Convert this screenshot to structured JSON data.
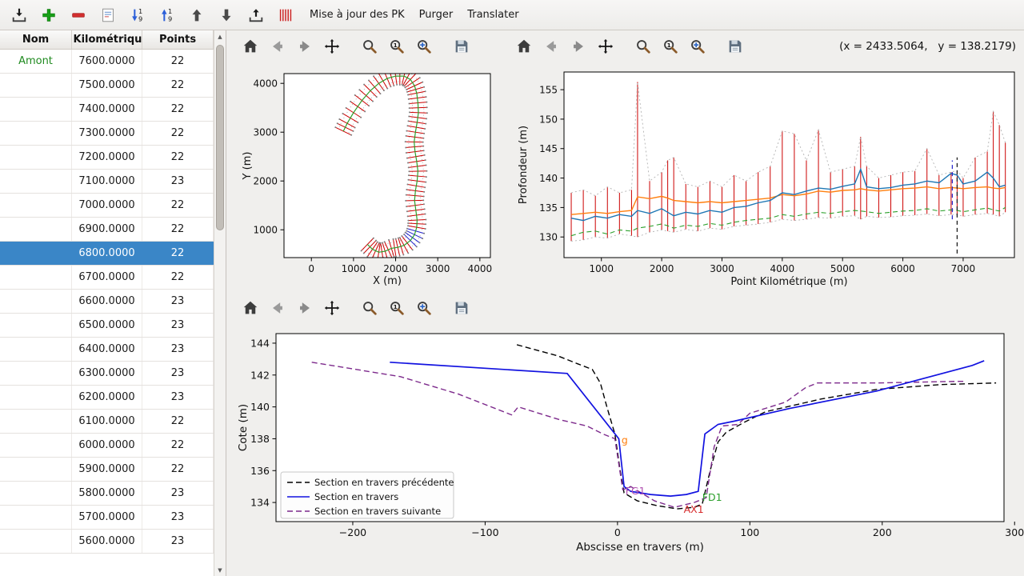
{
  "toolbar": {
    "buttons": [
      {
        "name": "import"
      },
      {
        "name": "add"
      },
      {
        "name": "remove"
      },
      {
        "name": "notes"
      },
      {
        "name": "sort-desc"
      },
      {
        "name": "sort-asc"
      },
      {
        "name": "move-up"
      },
      {
        "name": "move-down"
      },
      {
        "name": "export"
      },
      {
        "name": "pk-marks"
      }
    ],
    "menus": [
      "Mise à jour des PK",
      "Purger",
      "Translater"
    ]
  },
  "table": {
    "columns": [
      "Nom",
      "t Kilométrique",
      "Points"
    ],
    "selected_index": 8,
    "rows": [
      {
        "nom": "Amont",
        "pk": "7600.0000",
        "points": "22"
      },
      {
        "nom": "",
        "pk": "7500.0000",
        "points": "22"
      },
      {
        "nom": "",
        "pk": "7400.0000",
        "points": "22"
      },
      {
        "nom": "",
        "pk": "7300.0000",
        "points": "22"
      },
      {
        "nom": "",
        "pk": "7200.0000",
        "points": "22"
      },
      {
        "nom": "",
        "pk": "7100.0000",
        "points": "23"
      },
      {
        "nom": "",
        "pk": "7000.0000",
        "points": "22"
      },
      {
        "nom": "",
        "pk": "6900.0000",
        "points": "22"
      },
      {
        "nom": "",
        "pk": "6800.0000",
        "points": "22"
      },
      {
        "nom": "",
        "pk": "6700.0000",
        "points": "22"
      },
      {
        "nom": "",
        "pk": "6600.0000",
        "points": "23"
      },
      {
        "nom": "",
        "pk": "6500.0000",
        "points": "23"
      },
      {
        "nom": "",
        "pk": "6400.0000",
        "points": "23"
      },
      {
        "nom": "",
        "pk": "6300.0000",
        "points": "23"
      },
      {
        "nom": "",
        "pk": "6200.0000",
        "points": "23"
      },
      {
        "nom": "",
        "pk": "6100.0000",
        "points": "22"
      },
      {
        "nom": "",
        "pk": "6000.0000",
        "points": "22"
      },
      {
        "nom": "",
        "pk": "5900.0000",
        "points": "22"
      },
      {
        "nom": "",
        "pk": "5800.0000",
        "points": "23"
      },
      {
        "nom": "",
        "pk": "5700.0000",
        "points": "23"
      },
      {
        "nom": "",
        "pk": "5600.0000",
        "points": "23"
      }
    ]
  },
  "nav_toolbar": {
    "icons": [
      "home",
      "back",
      "forward",
      "pan",
      "zoom",
      "zoom-one",
      "zoom-plus",
      "save"
    ]
  },
  "readout": "(x = 2433.5064,   y = 138.2179)",
  "chart_data": [
    {
      "id": "plan",
      "type": "line",
      "xlabel": "X (m)",
      "ylabel": "Y (m)",
      "xlim": [
        -650,
        4250
      ],
      "ylim": [
        430,
        4200
      ],
      "xticks": [
        0,
        1000,
        2000,
        3000,
        4000
      ],
      "yticks": [
        1000,
        2000,
        3000,
        4000
      ],
      "centerline": [
        [
          1330,
          700
        ],
        [
          1450,
          600
        ],
        [
          1600,
          540
        ],
        [
          1750,
          560
        ],
        [
          1900,
          620
        ],
        [
          2050,
          640
        ],
        [
          2200,
          680
        ],
        [
          2350,
          780
        ],
        [
          2450,
          900
        ],
        [
          2500,
          1050
        ],
        [
          2510,
          1200
        ],
        [
          2480,
          1400
        ],
        [
          2450,
          1600
        ],
        [
          2470,
          1800
        ],
        [
          2510,
          2000
        ],
        [
          2530,
          2200
        ],
        [
          2500,
          2400
        ],
        [
          2460,
          2600
        ],
        [
          2440,
          2800
        ],
        [
          2470,
          3000
        ],
        [
          2510,
          3200
        ],
        [
          2540,
          3400
        ],
        [
          2530,
          3600
        ],
        [
          2500,
          3800
        ],
        [
          2450,
          3950
        ],
        [
          2350,
          4080
        ],
        [
          2200,
          4150
        ],
        [
          2000,
          4150
        ],
        [
          1800,
          4100
        ],
        [
          1600,
          4000
        ],
        [
          1400,
          3850
        ],
        [
          1200,
          3650
        ],
        [
          1000,
          3400
        ],
        [
          850,
          3180
        ],
        [
          760,
          3020
        ]
      ],
      "highlight_range": [
        14,
        17
      ],
      "colors": {
        "sections": "#cc0000",
        "axis": "#2ca02c",
        "banks": "#999999",
        "highlight": "#2222cc"
      }
    },
    {
      "id": "profile",
      "type": "line",
      "xlabel": "Point Kilométrique (m)",
      "ylabel": "Profondeur (m)",
      "xlim": [
        380,
        7850
      ],
      "ylim": [
        126.5,
        158
      ],
      "xticks": [
        1000,
        2000,
        3000,
        4000,
        5000,
        6000,
        7000
      ],
      "yticks": [
        130,
        135,
        140,
        145,
        150,
        155
      ],
      "pk": [
        500,
        700,
        900,
        1100,
        1300,
        1500,
        1600,
        1800,
        2000,
        2100,
        2200,
        2400,
        2600,
        2800,
        3000,
        3200,
        3400,
        3600,
        3800,
        4000,
        4200,
        4400,
        4600,
        4800,
        5000,
        5200,
        5300,
        5400,
        5600,
        5800,
        6000,
        6200,
        6400,
        6600,
        6800,
        6900,
        7000,
        7200,
        7400,
        7500,
        7600,
        7700
      ],
      "bars": {
        "max": [
          137.5,
          138.0,
          137.0,
          138.5,
          137.5,
          138.0,
          156.3,
          139.5,
          141.0,
          143.0,
          143.5,
          139.0,
          138.5,
          139.5,
          138.5,
          140.5,
          139.5,
          141.0,
          142.0,
          148.0,
          147.5,
          143.0,
          148.2,
          141.0,
          141.5,
          142.0,
          147.0,
          142.0,
          140.0,
          140.5,
          141.0,
          141.2,
          145.0,
          140.5,
          141.0,
          141.3,
          140.0,
          143.5,
          144.5,
          151.3,
          149.0,
          146.0
        ],
        "min": [
          129.3,
          129.5,
          130.0,
          129.8,
          130.5,
          130.2,
          130.0,
          130.8,
          131.2,
          131.0,
          130.8,
          131.3,
          131.0,
          131.5,
          131.3,
          131.8,
          132.0,
          132.2,
          132.5,
          133.0,
          132.8,
          133.0,
          133.3,
          133.2,
          133.5,
          133.6,
          133.0,
          133.5,
          133.3,
          133.4,
          133.6,
          133.7,
          133.9,
          133.6,
          133.8,
          133.8,
          133.5,
          133.8,
          134.0,
          133.8,
          133.5,
          134.2
        ],
        "color": "#cc0000"
      },
      "series": [
        {
          "name": "fond",
          "color": "#2ca02c",
          "dash": "6 4",
          "values": [
            130.2,
            130.8,
            131.0,
            130.5,
            131.2,
            131.0,
            131.5,
            131.8,
            132.2,
            131.9,
            131.5,
            132.0,
            131.8,
            132.3,
            132.0,
            132.5,
            132.8,
            133.0,
            133.2,
            133.8,
            133.5,
            133.9,
            134.2,
            134.0,
            134.3,
            134.5,
            134.4,
            134.3,
            134.0,
            134.2,
            134.4,
            134.5,
            134.8,
            134.4,
            134.6,
            134.5,
            134.3,
            134.6,
            134.9,
            134.6,
            134.4,
            135.0
          ]
        },
        {
          "name": "ligne-orange",
          "color": "#ff7f0e",
          "dash": null,
          "values": [
            133.8,
            134.0,
            134.2,
            134.0,
            134.3,
            134.5,
            136.8,
            136.5,
            136.9,
            136.6,
            136.2,
            136.0,
            135.8,
            136.0,
            135.8,
            136.0,
            136.2,
            136.4,
            136.6,
            137.2,
            137.0,
            137.3,
            137.8,
            137.6,
            137.9,
            138.0,
            138.2,
            138.0,
            137.8,
            138.0,
            138.2,
            138.3,
            138.5,
            138.2,
            138.4,
            138.3,
            138.2,
            138.4,
            138.5,
            138.3,
            138.2,
            138.4
          ]
        },
        {
          "name": "ligne-bleue",
          "color": "#1f77b4",
          "dash": null,
          "values": [
            133.2,
            132.8,
            133.5,
            133.2,
            133.8,
            133.5,
            134.5,
            134.0,
            134.8,
            134.2,
            133.6,
            134.2,
            133.9,
            134.5,
            134.2,
            135.0,
            135.2,
            135.8,
            136.2,
            137.5,
            137.2,
            137.8,
            138.3,
            138.1,
            138.6,
            139.0,
            141.5,
            138.5,
            138.2,
            138.4,
            138.8,
            139.0,
            139.5,
            139.2,
            140.8,
            140.5,
            139.0,
            139.5,
            141.0,
            140.0,
            138.5,
            138.8
          ]
        }
      ],
      "envelope_color": "#b3b3b3",
      "vlines": [
        {
          "x": 6820,
          "y0": 133.0,
          "y1": 143.0,
          "color": "#2222cc"
        },
        {
          "x": 6900,
          "y0": 127.2,
          "y1": 143.5,
          "color": "#111111"
        }
      ]
    },
    {
      "id": "section",
      "type": "line",
      "xlabel": "Abscisse en travers (m)",
      "ylabel": "Cote (m)",
      "xlim": [
        -258,
        292
      ],
      "ylim": [
        132.8,
        144.6
      ],
      "xticks": [
        -200,
        -100,
        0,
        100,
        200,
        300
      ],
      "yticks": [
        134,
        136,
        138,
        140,
        142,
        144
      ],
      "series": [
        {
          "name": "Section en travers précédente",
          "color": "#000000",
          "dash": "7 4",
          "points": [
            [
              -76,
              143.9
            ],
            [
              -45,
              143.2
            ],
            [
              -30,
              142.7
            ],
            [
              -19,
              142.35
            ],
            [
              -13,
              141.5
            ],
            [
              -8,
              140.0
            ],
            [
              -2,
              138.3
            ],
            [
              2,
              136.0
            ],
            [
              5,
              134.6
            ],
            [
              15,
              134.1
            ],
            [
              30,
              133.8
            ],
            [
              45,
              133.6
            ],
            [
              58,
              133.7
            ],
            [
              64,
              133.9
            ],
            [
              70,
              136.0
            ],
            [
              76,
              137.8
            ],
            [
              82,
              138.4
            ],
            [
              95,
              139.0
            ],
            [
              112,
              139.7
            ],
            [
              154,
              140.5
            ],
            [
              196,
              141.1
            ],
            [
              244,
              141.4
            ],
            [
              286,
              141.5
            ]
          ]
        },
        {
          "name": "Section en travers",
          "color": "#1212e0",
          "dash": null,
          "points": [
            [
              -172,
              142.8
            ],
            [
              -38,
              142.1
            ],
            [
              1,
              138.0
            ],
            [
              5,
              135.0
            ],
            [
              10,
              134.7
            ],
            [
              25,
              134.5
            ],
            [
              40,
              134.4
            ],
            [
              52,
              134.5
            ],
            [
              61,
              134.7
            ],
            [
              66,
              138.3
            ],
            [
              76,
              138.9
            ],
            [
              88,
              139.1
            ],
            [
              130,
              139.9
            ],
            [
              196,
              141.0
            ],
            [
              268,
              142.6
            ],
            [
              277,
              142.9
            ]
          ]
        },
        {
          "name": "Section en travers suivante",
          "color": "#7d2a8c",
          "dash": "7 4",
          "points": [
            [
              -231,
              142.8
            ],
            [
              -164,
              141.9
            ],
            [
              -120,
              140.8
            ],
            [
              -80,
              139.5
            ],
            [
              -75,
              140.0
            ],
            [
              -44,
              139.2
            ],
            [
              -23,
              138.8
            ],
            [
              -11,
              138.3
            ],
            [
              -2,
              138.0
            ],
            [
              4,
              134.8
            ],
            [
              10,
              135.0
            ],
            [
              28,
              134.1
            ],
            [
              43,
              133.7
            ],
            [
              58,
              134.0
            ],
            [
              67,
              134.3
            ],
            [
              73,
              137.5
            ],
            [
              79,
              138.8
            ],
            [
              91,
              138.9
            ],
            [
              100,
              139.6
            ],
            [
              127,
              140.3
            ],
            [
              142,
              141.2
            ],
            [
              151,
              141.5
            ],
            [
              196,
              141.5
            ],
            [
              256,
              141.6
            ],
            [
              262,
              141.6
            ]
          ]
        }
      ],
      "annotations": [
        {
          "text": "g",
          "x": 3,
          "y": 137.7,
          "color": "#ff7f0e"
        },
        {
          "text": "FG1",
          "x": 6,
          "y": 134.5,
          "color": "#b050b0"
        },
        {
          "text": "AX1",
          "x": 50,
          "y": 133.35,
          "color": "#d62728"
        },
        {
          "text": "FD1",
          "x": 64,
          "y": 134.1,
          "color": "#2ca02c"
        }
      ],
      "legend": [
        "Section en travers précédente",
        "Section en travers",
        "Section en travers suivante"
      ]
    }
  ]
}
